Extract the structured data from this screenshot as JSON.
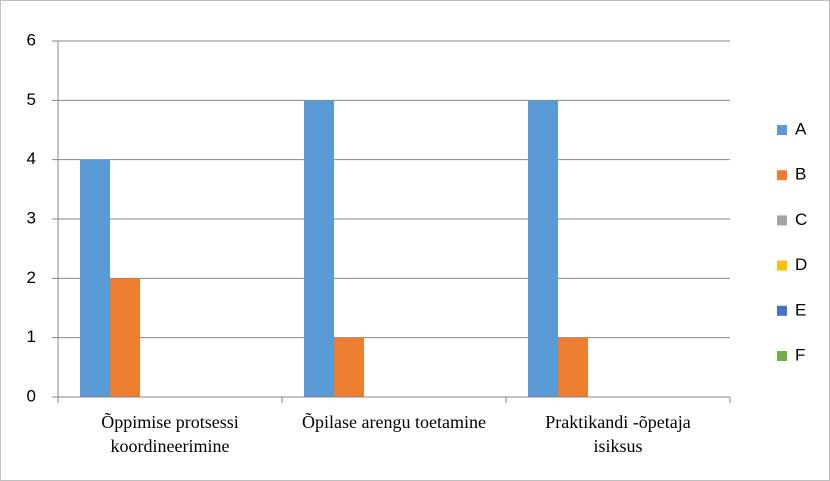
{
  "chart_data": {
    "type": "bar",
    "categories": [
      "Õppimise protsessi koordineerimine",
      "Õpilase arengu toetamine",
      "Praktikandi -õpetaja isiksus"
    ],
    "series": [
      {
        "name": "A",
        "color": "#5b9bd5",
        "values": [
          4,
          5,
          5
        ]
      },
      {
        "name": "B",
        "color": "#ed7d31",
        "values": [
          2,
          1,
          1
        ]
      },
      {
        "name": "C",
        "color": "#a5a5a5",
        "values": [
          0,
          0,
          0
        ]
      },
      {
        "name": "D",
        "color": "#ffc000",
        "values": [
          0,
          0,
          0
        ]
      },
      {
        "name": "E",
        "color": "#4472c4",
        "values": [
          0,
          0,
          0
        ]
      },
      {
        "name": "F",
        "color": "#70ad47",
        "values": [
          0,
          0,
          0
        ]
      }
    ],
    "ylim": [
      0,
      6
    ],
    "yticks": [
      0,
      1,
      2,
      3,
      4,
      5,
      6
    ],
    "grid": true,
    "legend": "right"
  }
}
